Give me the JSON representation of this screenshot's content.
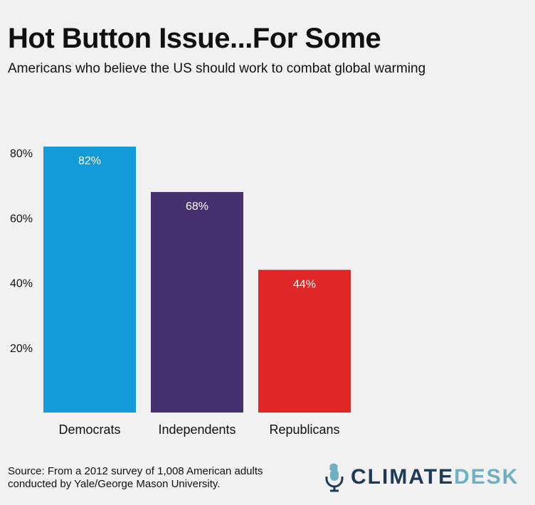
{
  "title": "Hot Button Issue...For Some",
  "subtitle": "Americans who believe the US should work to combat global warming",
  "chart_data": {
    "type": "bar",
    "categories": [
      "Democrats",
      "Independents",
      "Republicans"
    ],
    "values": [
      82,
      68,
      44
    ],
    "data_labels": [
      "82%",
      "68%",
      "44%"
    ],
    "colors": [
      "#139bd9",
      "#46306f",
      "#e02727"
    ],
    "yticks": [
      20,
      40,
      60,
      80
    ],
    "ytick_labels": [
      "20%",
      "40%",
      "60%",
      "80%"
    ],
    "ylim": [
      0,
      100
    ],
    "grid": false,
    "legend": "none"
  },
  "source": {
    "line1": "Source: From a 2012 survey of 1,008 American adults",
    "line2": "conducted by Yale/George Mason University."
  },
  "logo": {
    "icon": "microphone-icon",
    "word1": "CLIMATE",
    "word2": "DESK",
    "color1": "#1f3a54",
    "color2": "#6fb0c3"
  }
}
